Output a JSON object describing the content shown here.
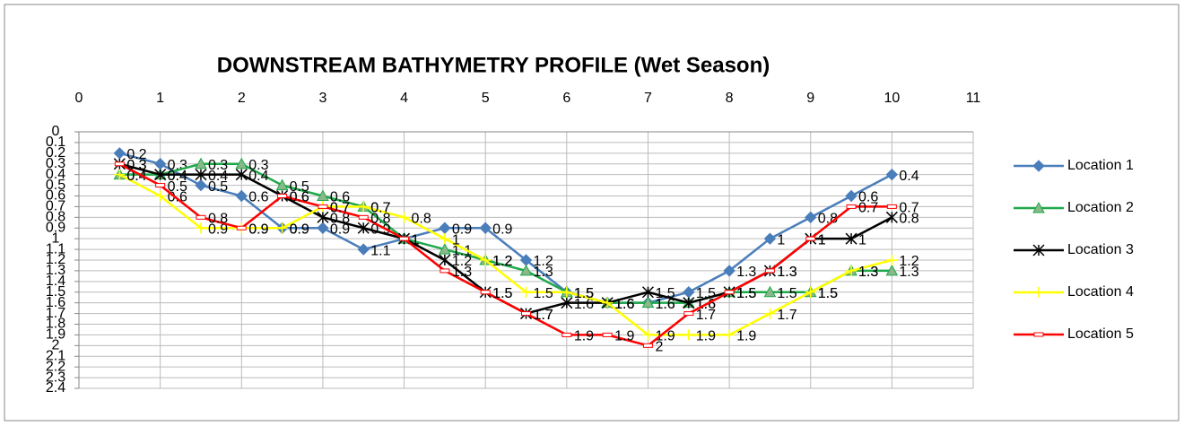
{
  "chart_data": {
    "type": "line",
    "title": "DOWNSTREAM BATHYMETRY PROFILE (Wet Season)",
    "x": [
      0.5,
      1,
      1.5,
      2,
      2.5,
      3,
      3.5,
      4,
      4.5,
      5,
      5.5,
      6,
      6.5,
      7,
      7.5,
      8,
      8.5,
      9,
      9.5,
      10
    ],
    "xlim": [
      0,
      11
    ],
    "xticks": [
      0,
      1,
      2,
      3,
      4,
      5,
      6,
      7,
      8,
      9,
      10,
      11
    ],
    "ylim": [
      0,
      2.4
    ],
    "y_inverted": true,
    "x_axis_position": "top",
    "yticks": [
      0,
      0.1,
      0.2,
      0.3,
      0.4,
      0.5,
      0.6,
      0.7,
      0.8,
      0.9,
      1,
      1.1,
      1.2,
      1.3,
      1.4,
      1.5,
      1.6,
      1.7,
      1.8,
      1.9,
      2,
      2.1,
      2.2,
      2.3,
      2.4
    ],
    "grid": true,
    "legend": "right",
    "data_labels": true,
    "series": [
      {
        "name": "Location 1",
        "color": "#4a7ebb",
        "marker": "diamond",
        "values": [
          0.2,
          0.3,
          0.5,
          0.6,
          0.9,
          0.9,
          1.1,
          1.0,
          0.9,
          0.9,
          1.2,
          1.5,
          1.6,
          1.6,
          1.5,
          1.3,
          1.0,
          0.8,
          0.6,
          0.4
        ]
      },
      {
        "name": "Location 2",
        "color": "#1fa84a",
        "marker": "triangle",
        "values": [
          0.4,
          0.4,
          0.3,
          0.3,
          0.5,
          0.6,
          0.7,
          1.0,
          1.1,
          1.2,
          1.3,
          1.5,
          1.6,
          1.6,
          1.6,
          1.5,
          1.5,
          1.5,
          1.3,
          1.3
        ]
      },
      {
        "name": "Location 3",
        "color": "#000000",
        "marker": "star",
        "values": [
          0.3,
          0.4,
          0.4,
          0.4,
          0.6,
          0.8,
          0.9,
          1.0,
          1.2,
          1.5,
          1.7,
          1.6,
          1.6,
          1.5,
          1.6,
          1.5,
          1.3,
          1.0,
          1.0,
          0.8
        ]
      },
      {
        "name": "Location 4",
        "color": "#ffff00",
        "marker": "plus",
        "values": [
          0.4,
          0.6,
          0.9,
          0.9,
          0.9,
          0.7,
          0.7,
          0.8,
          1.0,
          1.2,
          1.5,
          1.5,
          1.6,
          1.9,
          1.9,
          1.9,
          1.7,
          1.5,
          1.3,
          1.2
        ]
      },
      {
        "name": "Location 5",
        "color": "#ff0000",
        "marker": "dash",
        "values": [
          0.3,
          0.5,
          0.8,
          0.9,
          0.6,
          0.7,
          0.8,
          1.0,
          1.3,
          1.5,
          1.7,
          1.9,
          1.9,
          2.0,
          1.7,
          1.5,
          1.3,
          1.0,
          0.7,
          0.7
        ]
      }
    ]
  }
}
